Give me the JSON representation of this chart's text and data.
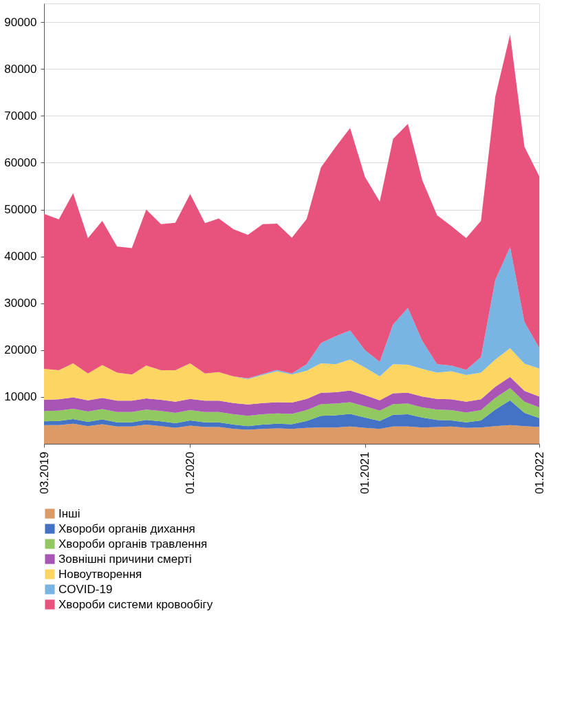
{
  "chart_data": {
    "type": "area",
    "stacked": true,
    "x": [
      "2019-03",
      "2019-04",
      "2019-05",
      "2019-06",
      "2019-07",
      "2019-08",
      "2019-09",
      "2019-10",
      "2019-11",
      "2019-12",
      "2020-01",
      "2020-02",
      "2020-03",
      "2020-04",
      "2020-05",
      "2020-06",
      "2020-07",
      "2020-08",
      "2020-09",
      "2020-10",
      "2020-11",
      "2020-12",
      "2021-01",
      "2021-02",
      "2021-03",
      "2021-04",
      "2021-05",
      "2021-06",
      "2021-07",
      "2021-08",
      "2021-09",
      "2021-10",
      "2021-11",
      "2021-12",
      "2022-01"
    ],
    "series": [
      {
        "name": "Інші",
        "color": "#db9a66",
        "values": [
          4000,
          4000,
          4300,
          3800,
          4200,
          3700,
          3700,
          4100,
          3800,
          3400,
          3900,
          3600,
          3600,
          3200,
          3000,
          3200,
          3300,
          3200,
          3400,
          3500,
          3500,
          3700,
          3400,
          3200,
          3700,
          3700,
          3500,
          3600,
          3700,
          3400,
          3500,
          3800,
          4000,
          3800,
          3600
        ]
      },
      {
        "name": "Хвороби органів дихання",
        "color": "#4472c4",
        "values": [
          800,
          900,
          1000,
          900,
          1000,
          900,
          900,
          1000,
          1000,
          1000,
          1100,
          1000,
          1000,
          900,
          800,
          900,
          1000,
          1000,
          1500,
          2500,
          2600,
          2700,
          2200,
          1700,
          2500,
          2600,
          2100,
          1500,
          1300,
          1200,
          1500,
          3500,
          5300,
          2800,
          1900
        ]
      },
      {
        "name": "Хвороби органів травлення",
        "color": "#91c85f",
        "values": [
          2200,
          2200,
          2200,
          2200,
          2200,
          2200,
          2200,
          2200,
          2200,
          2200,
          2200,
          2200,
          2200,
          2200,
          2200,
          2200,
          2200,
          2200,
          2300,
          2500,
          2500,
          2500,
          2400,
          2200,
          2300,
          2300,
          2200,
          2200,
          2200,
          2100,
          2200,
          2500,
          2600,
          2400,
          2300
        ]
      },
      {
        "name": "Зовнішні причини смерті",
        "color": "#a855b5",
        "values": [
          2400,
          2400,
          2400,
          2400,
          2400,
          2400,
          2400,
          2400,
          2400,
          2400,
          2400,
          2400,
          2400,
          2400,
          2400,
          2400,
          2400,
          2400,
          2400,
          2400,
          2400,
          2500,
          2400,
          2200,
          2300,
          2300,
          2300,
          2300,
          2300,
          2300,
          2300,
          2400,
          2400,
          2300,
          2300
        ]
      },
      {
        "name": "Новоутворення",
        "color": "#fdd563",
        "values": [
          6600,
          6200,
          7300,
          5700,
          7000,
          6000,
          5600,
          7000,
          6300,
          6700,
          7600,
          5800,
          6100,
          5700,
          5400,
          6000,
          6600,
          6000,
          6000,
          6300,
          6000,
          6600,
          5900,
          5100,
          6200,
          6000,
          5900,
          5600,
          6000,
          5700,
          5700,
          5800,
          6100,
          5800,
          6000
        ]
      },
      {
        "name": "COVID-19",
        "color": "#78b5e3",
        "values": [
          0,
          0,
          0,
          0,
          0,
          0,
          0,
          0,
          0,
          0,
          0,
          0,
          0,
          0,
          200,
          200,
          300,
          200,
          1400,
          4300,
          6000,
          6200,
          3700,
          3100,
          8500,
          12100,
          6000,
          1800,
          1200,
          1100,
          3300,
          17000,
          21600,
          8900,
          4400
        ]
      },
      {
        "name": "Хвороби системи кровообігу",
        "color": "#e8537d",
        "values": [
          33100,
          32200,
          36300,
          28900,
          30800,
          26900,
          27000,
          33300,
          31200,
          31500,
          36100,
          32100,
          32800,
          31400,
          30600,
          32000,
          31200,
          29000,
          31000,
          37500,
          40400,
          43200,
          37000,
          34200,
          39600,
          39300,
          34300,
          31800,
          29800,
          28100,
          29100,
          39100,
          45400,
          37400,
          36600
        ]
      }
    ],
    "xlim": [
      "2019-03",
      "2022-01"
    ],
    "xticks": [
      {
        "value": "2019-03",
        "label": "03.2019"
      },
      {
        "value": "2020-01",
        "label": "01.2020"
      },
      {
        "value": "2021-01",
        "label": "01.2021"
      },
      {
        "value": "2022-01",
        "label": "01.2022"
      }
    ],
    "ylim": [
      0,
      94000
    ],
    "yticks": [
      10000,
      20000,
      30000,
      40000,
      50000,
      60000,
      70000,
      80000,
      90000
    ],
    "grid": "y",
    "legend": "bottom"
  }
}
